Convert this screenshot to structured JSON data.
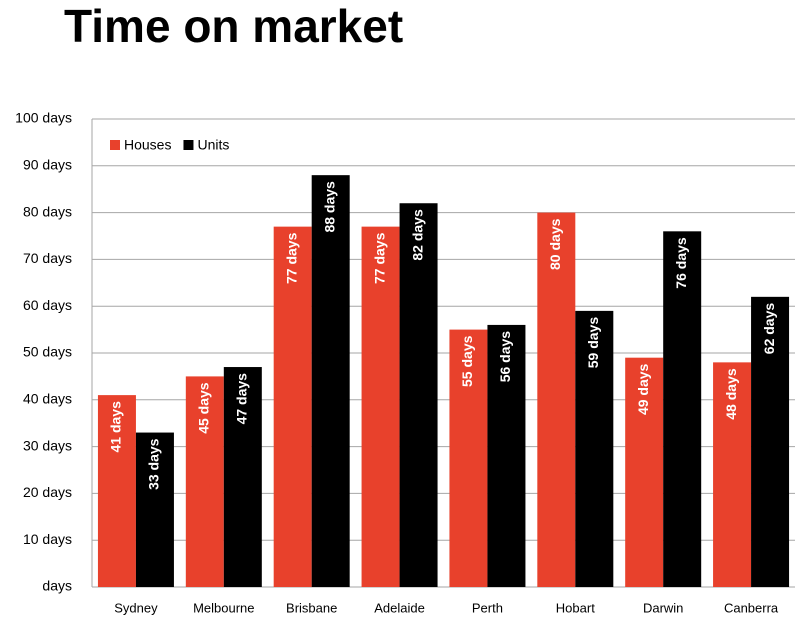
{
  "chart_data": {
    "type": "bar",
    "title": "Time on market",
    "categories": [
      "Sydney",
      "Melbourne",
      "Brisbane",
      "Adelaide",
      "Perth",
      "Hobart",
      "Darwin",
      "Canberra"
    ],
    "series": [
      {
        "name": "Houses",
        "color": "#e8412c",
        "values": [
          41,
          45,
          77,
          77,
          55,
          80,
          49,
          48
        ],
        "value_labels": [
          "41 days",
          "45 days",
          "77 days",
          "77 days",
          "55 days",
          "80 days",
          "49 days",
          "48 days"
        ]
      },
      {
        "name": "Units",
        "color": "#000000",
        "values": [
          33,
          47,
          88,
          82,
          56,
          59,
          76,
          62
        ],
        "value_labels": [
          "33 days",
          "47 days",
          "88 days",
          "82 days",
          "56 days",
          "59 days",
          "76 days",
          "62 days"
        ]
      }
    ],
    "ylim": [
      0,
      100
    ],
    "yticks": [
      {
        "value": 0,
        "label": "days"
      },
      {
        "value": 10,
        "label": "10 days"
      },
      {
        "value": 20,
        "label": "20 days"
      },
      {
        "value": 30,
        "label": "30 days"
      },
      {
        "value": 40,
        "label": "40 days"
      },
      {
        "value": 50,
        "label": "50 days"
      },
      {
        "value": 60,
        "label": "60 days"
      },
      {
        "value": 70,
        "label": "70 days"
      },
      {
        "value": 80,
        "label": "80 days"
      },
      {
        "value": 90,
        "label": "90 days"
      },
      {
        "value": 100,
        "label": "100 days"
      }
    ],
    "grid": true,
    "legend": "top-left"
  }
}
